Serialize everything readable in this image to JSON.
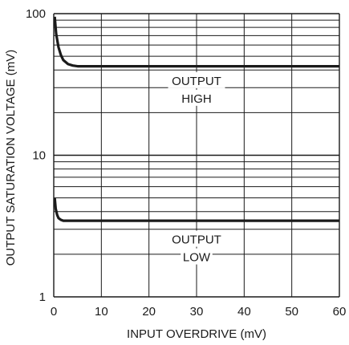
{
  "chart_data": {
    "type": "line",
    "title": "",
    "xlabel": "INPUT OVERDRIVE (mV)",
    "ylabel": "OUTPUT SATURATION VOLTAGE (mV)",
    "xlim": [
      0,
      60
    ],
    "ylim": [
      1,
      100
    ],
    "yscale": "log",
    "grid": true,
    "legend": "none",
    "x_ticks": [
      0,
      10,
      20,
      30,
      40,
      50,
      60
    ],
    "x_tick_labels": [
      "0",
      "10",
      "20",
      "30",
      "40",
      "50",
      "60"
    ],
    "y_ticks": [
      1,
      10,
      100
    ],
    "y_tick_labels": [
      "1",
      "10",
      "100"
    ],
    "series": [
      {
        "x": [
          0.2,
          0.5,
          1,
          1.5,
          2,
          3,
          4,
          5,
          6,
          8,
          10,
          20,
          30,
          40,
          50,
          60
        ],
        "y": [
          95,
          72,
          58,
          51,
          47,
          44,
          43,
          42.5,
          42.5,
          42.5,
          42.5,
          42.5,
          42.5,
          42.5,
          42.5,
          42.5
        ]
      },
      {
        "x": [
          0.2,
          0.4,
          0.7,
          1,
          1.5,
          2,
          3,
          4,
          6,
          10,
          20,
          30,
          40,
          50,
          60
        ],
        "y": [
          5,
          4.2,
          3.8,
          3.6,
          3.5,
          3.45,
          3.45,
          3.45,
          3.45,
          3.45,
          3.45,
          3.45,
          3.45,
          3.45,
          3.45
        ]
      }
    ],
    "annotations": [
      {
        "lines": [
          "OUTPUT",
          "HIGH"
        ],
        "x": 30,
        "y": 29
      },
      {
        "lines": [
          "OUTPUT",
          "LOW"
        ],
        "x": 30,
        "y": 2.2
      }
    ],
    "colors": {
      "curve": "#1a1a1a",
      "grid": "#1a1a1a",
      "background": "#ffffff"
    }
  }
}
